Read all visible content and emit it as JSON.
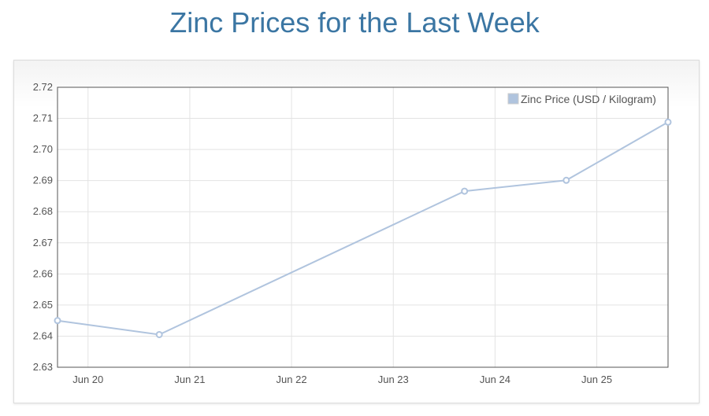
{
  "page": {
    "title": "Zinc Prices for the Last Week"
  },
  "chart_data": {
    "type": "line",
    "title": "Zinc Prices for the Last Week",
    "xlabel": "",
    "ylabel": "",
    "x_ticks": [
      "Jun 20",
      "Jun 21",
      "Jun 22",
      "Jun 23",
      "Jun 24",
      "Jun 25"
    ],
    "y_ticks": [
      "2.72",
      "2.71",
      "2.70",
      "2.69",
      "2.68",
      "2.67",
      "2.66",
      "2.65",
      "2.64",
      "2.63"
    ],
    "ylim": [
      2.63,
      2.72
    ],
    "x_range_days": [
      -0.3,
      5.7
    ],
    "grid": true,
    "legend_position": "top-right",
    "series": [
      {
        "name": "Zinc Price (USD / Kilogram)",
        "color": "#b0c4de",
        "points": [
          {
            "x": -0.3,
            "y": 2.645
          },
          {
            "x": 0.7,
            "y": 2.6405
          },
          {
            "x": 3.7,
            "y": 2.6866
          },
          {
            "x": 4.7,
            "y": 2.6901
          },
          {
            "x": 5.7,
            "y": 2.7088
          }
        ]
      }
    ]
  }
}
